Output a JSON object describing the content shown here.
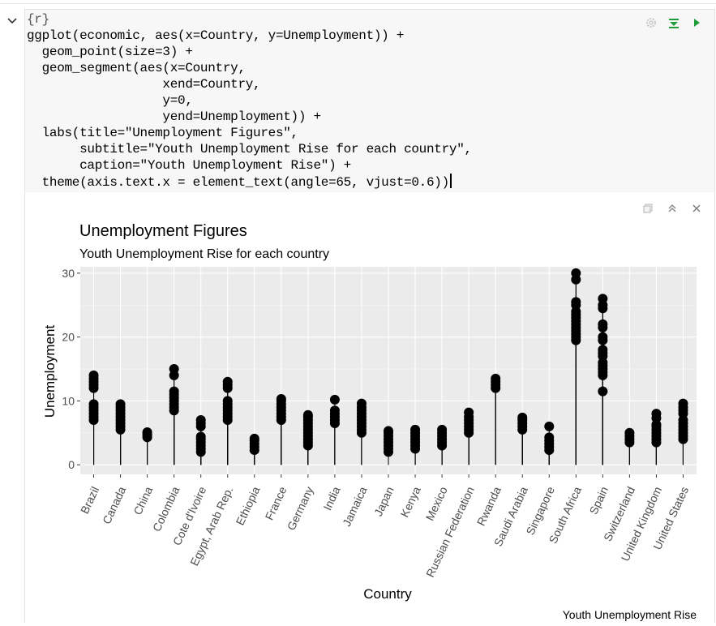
{
  "chunk": {
    "header": "{r}",
    "code_lines": [
      "ggplot(economic, aes(x=Country, y=Unemployment)) +",
      "  geom_point(size=3) +",
      "  geom_segment(aes(x=Country,",
      "                  xend=Country,",
      "                  y=0,",
      "                  yend=Unemployment)) +",
      "  labs(title=\"Unemployment Figures\",",
      "       subtitle=\"Youth Unemployment Rise for each country\",",
      "       caption=\"Youth Unemployment Rise\") +",
      "  theme(axis.text.x = element_text(angle=65, vjust=0.6))"
    ]
  },
  "icons": {
    "collapse": "chevron-down-icon",
    "settings": "gear-icon",
    "run_above": "run-above-icon",
    "run": "play-icon",
    "expand_output": "expand-icon",
    "collapse_output": "chevron-up-double-icon",
    "close_output": "close-icon"
  },
  "colors": {
    "panel": "#ebebeb",
    "grid": "#ffffff",
    "points": "#000000",
    "run": "#1f9d3a",
    "string": "#17730f",
    "number": "#3a3aa8"
  },
  "chart_data": {
    "type": "scatter",
    "title": "Unemployment Figures",
    "subtitle": "Youth Unemployment Rise for each country",
    "caption": "Youth Unemployment Rise",
    "xlabel": "Country",
    "ylabel": "Unemployment",
    "ylim": [
      -1.5,
      31
    ],
    "yticks": [
      0,
      10,
      20,
      30
    ],
    "grid": true,
    "categories": [
      "Brazil",
      "Canada",
      "China",
      "Colombia",
      "Cote d'Ivoire",
      "Egypt, Arab Rep.",
      "Ethiopia",
      "France",
      "Germany",
      "India",
      "Jamaica",
      "Japan",
      "Kenya",
      "Mexico",
      "Russian Federation",
      "Rwanda",
      "Saudi Arabia",
      "Singapore",
      "South Africa",
      "Spain",
      "Switzerland",
      "United Kingdom",
      "United States"
    ],
    "values": [
      [
        7.0,
        7.5,
        8.0,
        8.5,
        9.0,
        9.5,
        12.0,
        12.5,
        13.0,
        13.5,
        14.0
      ],
      [
        5.5,
        6.0,
        6.5,
        7.0,
        7.5,
        8.0,
        8.5,
        9.0,
        9.5
      ],
      [
        4.3,
        4.6,
        4.9,
        5.1
      ],
      [
        8.5,
        9.0,
        9.5,
        10.0,
        10.5,
        11.0,
        11.5,
        14.0,
        15.0
      ],
      [
        2.0,
        2.5,
        3.0,
        3.5,
        4.0,
        4.4,
        6.0,
        6.5,
        7.0
      ],
      [
        7.0,
        7.5,
        8.0,
        8.5,
        9.0,
        9.5,
        10.0,
        12.0,
        12.5,
        13.0
      ],
      [
        2.3,
        2.8,
        3.3,
        3.8,
        4.1
      ],
      [
        7.0,
        7.5,
        8.0,
        8.5,
        9.0,
        9.5,
        10.0,
        10.3
      ],
      [
        3.0,
        3.5,
        4.0,
        4.5,
        5.0,
        5.5,
        6.0,
        6.5,
        7.0,
        7.5,
        7.8
      ],
      [
        6.5,
        7.0,
        7.5,
        8.0,
        8.5,
        10.2
      ],
      [
        5.0,
        5.5,
        6.0,
        6.5,
        7.0,
        7.5,
        8.0,
        8.5,
        9.0,
        9.6
      ],
      [
        2.0,
        2.5,
        3.0,
        3.5,
        4.0,
        4.5,
        5.0,
        5.3
      ],
      [
        2.5,
        3.0,
        3.5,
        4.0,
        4.5,
        5.0,
        5.5
      ],
      [
        3.0,
        3.5,
        4.0,
        4.5,
        5.0,
        5.5
      ],
      [
        5.0,
        5.5,
        6.0,
        6.5,
        7.0,
        7.5,
        8.2
      ],
      [
        12.0,
        12.5,
        13.0,
        13.5
      ],
      [
        5.5,
        6.0,
        6.5,
        7.0,
        7.4
      ],
      [
        2.3,
        2.8,
        3.3,
        3.8,
        4.3,
        6.0
      ],
      [
        19.5,
        20.0,
        20.5,
        21.0,
        21.5,
        22.0,
        22.5,
        23.0,
        23.5,
        24.0,
        25.0,
        25.5,
        29.0,
        30.0
      ],
      [
        11.5,
        14.0,
        14.5,
        15.0,
        15.5,
        16.0,
        17.0,
        17.5,
        18.0,
        19.5,
        20.0,
        21.5,
        22.0,
        24.5,
        25.0,
        26.0
      ],
      [
        3.5,
        4.0,
        4.5,
        5.0
      ],
      [
        3.5,
        4.0,
        4.5,
        5.0,
        5.5,
        6.0,
        6.3,
        7.3,
        8.0
      ],
      [
        4.0,
        4.5,
        5.0,
        5.5,
        6.0,
        6.5,
        7.0,
        8.0,
        8.5,
        9.0,
        9.6
      ]
    ]
  }
}
